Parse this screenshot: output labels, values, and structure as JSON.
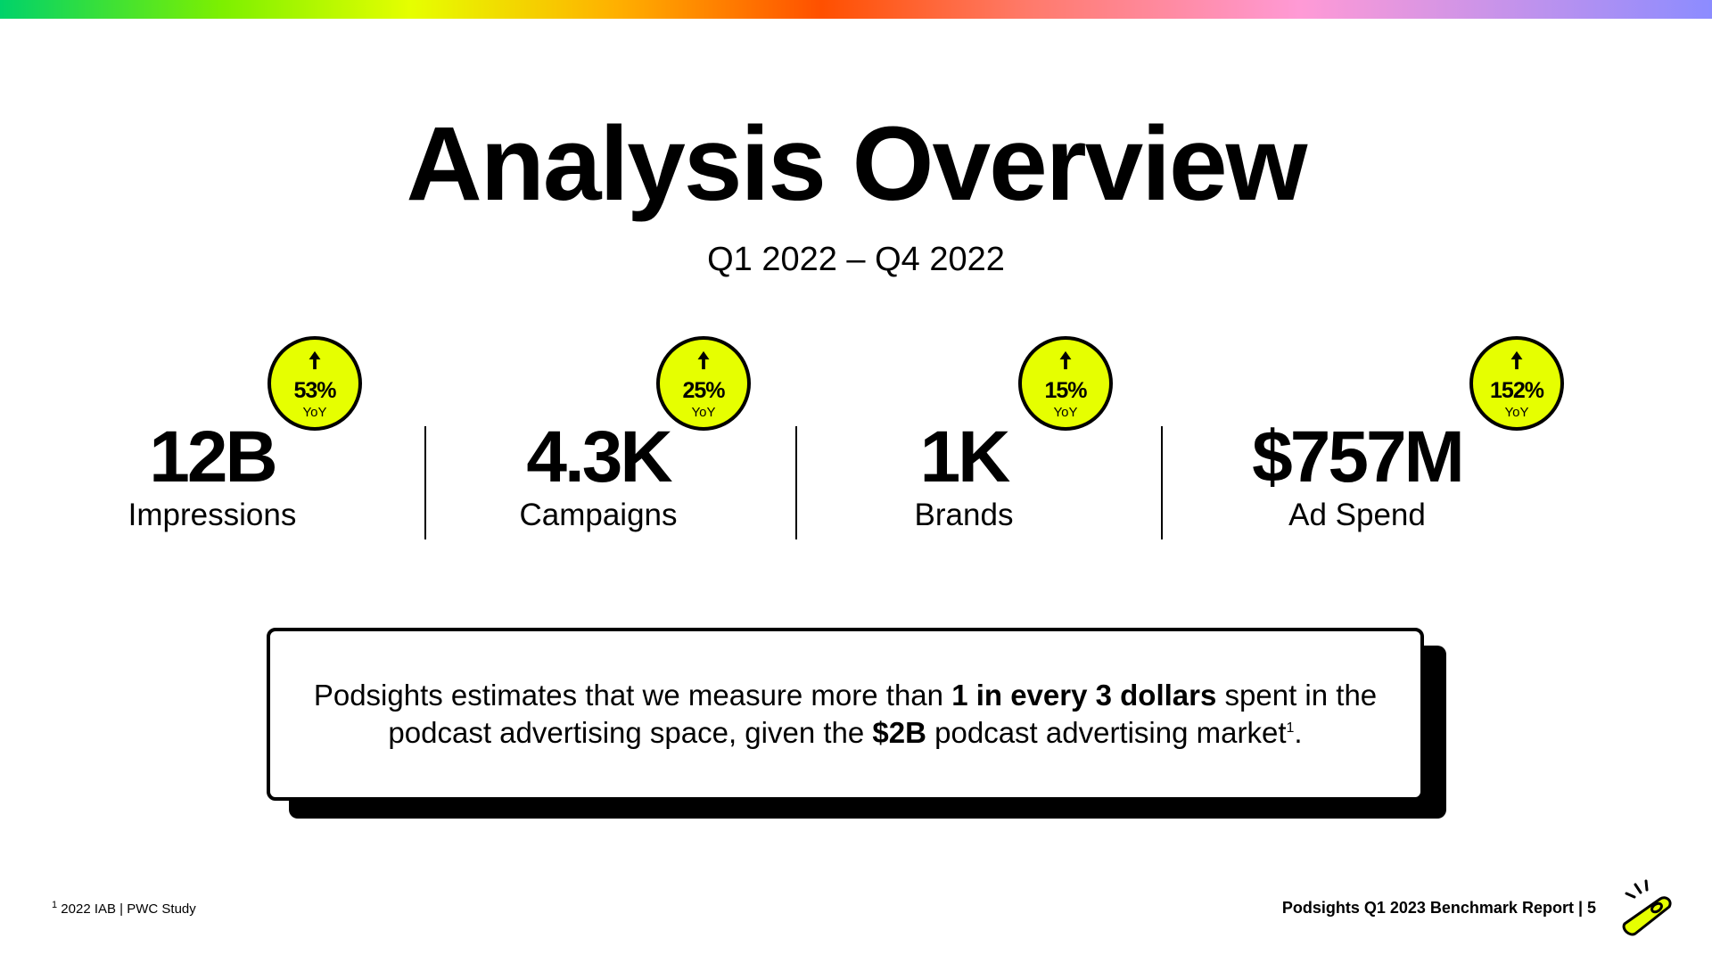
{
  "title": "Analysis Overview",
  "subtitle": "Q1 2022 – Q4 2022",
  "stats": [
    {
      "value": "12B",
      "label": "Impressions",
      "change": "53%",
      "change_unit": "YoY"
    },
    {
      "value": "4.3K",
      "label": "Campaigns",
      "change": "25%",
      "change_unit": "YoY"
    },
    {
      "value": "1K",
      "label": "Brands",
      "change": "15%",
      "change_unit": "YoY"
    },
    {
      "value": "$757M",
      "label": "Ad Spend",
      "change": "152%",
      "change_unit": "YoY"
    }
  ],
  "callout": {
    "part1": "Podsights estimates that we measure more than ",
    "bold1": "1 in every 3 dollars",
    "part2": " spent in the podcast advertising space, given the ",
    "bold2": "$2B",
    "part3": " podcast advertising market",
    "sup": "1",
    "part4": "."
  },
  "footnote": {
    "marker": "1",
    "text": " 2022 IAB | PWC Study"
  },
  "footer": {
    "report": "Podsights Q1 2023 Benchmark Report | 5"
  },
  "colors": {
    "badge": "#e6ff00",
    "logo": "#e6ff00",
    "text": "#000000"
  },
  "icons": {
    "badge_arrow": "arrow-up-icon",
    "logo": "podsights-logo-icon"
  }
}
